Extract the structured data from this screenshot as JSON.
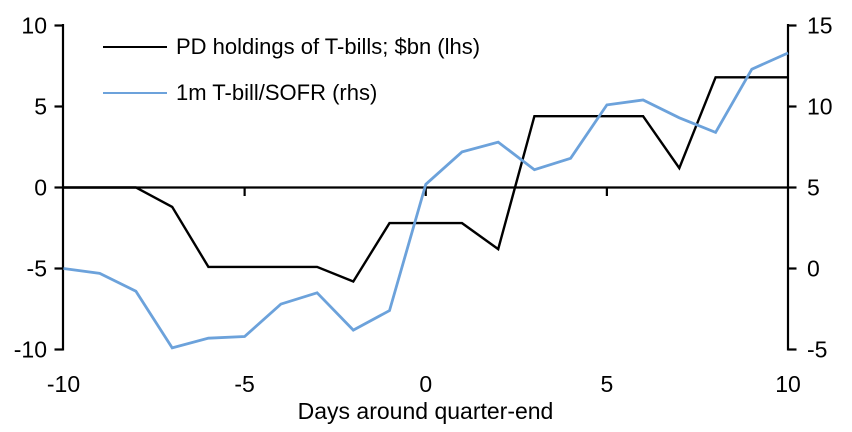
{
  "chart_data": {
    "type": "line",
    "x": [
      -10,
      -9,
      -8,
      -7,
      -6,
      -5,
      -4,
      -3,
      -2,
      -1,
      0,
      1,
      2,
      3,
      4,
      5,
      6,
      7,
      8,
      9,
      10
    ],
    "xlabel": "Days around quarter-end",
    "xlim": [
      -10,
      10
    ],
    "x_ticks": [
      -10,
      -5,
      0,
      5,
      10
    ],
    "left_axis": {
      "ylim": [
        -10,
        10
      ],
      "ticks": [
        10,
        5,
        0,
        -5,
        -10
      ]
    },
    "right_axis": {
      "ylim": [
        -5,
        15
      ],
      "ticks": [
        15,
        10,
        5,
        0,
        -5
      ]
    },
    "grid": false,
    "legend_position": "top-left",
    "series": [
      {
        "name": "PD holdings of T-bills; $bn (lhs)",
        "axis": "left",
        "color": "#000000",
        "values": [
          0,
          0,
          0,
          -1.2,
          -4.9,
          -4.9,
          -4.9,
          -4.9,
          -5.8,
          -2.2,
          -2.2,
          -2.2,
          -3.8,
          4.4,
          4.4,
          4.4,
          4.4,
          1.2,
          6.8,
          6.8,
          6.8
        ]
      },
      {
        "name": "1m T-bill/SOFR (rhs)",
        "axis": "right",
        "color": "#6CA2DB",
        "values": [
          0,
          -0.3,
          -1.4,
          -4.9,
          -4.3,
          -4.2,
          -2.2,
          -1.5,
          -3.8,
          -2.6,
          5.2,
          7.2,
          7.8,
          6.1,
          6.8,
          10.1,
          10.4,
          9.3,
          8.4,
          12.3,
          13.3
        ]
      }
    ]
  }
}
